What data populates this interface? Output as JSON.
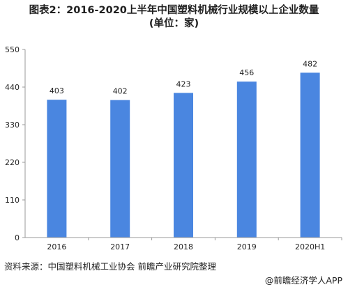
{
  "title_line1": "图表2：2016-2020上半年中国塑料机械行业规模以上企业数量",
  "title_line2": "(单位：家)",
  "source": "资料来源：中国塑料机械工业协会 前瞻产业研究院整理",
  "brand": "@前瞻经济学人APP",
  "colors": {
    "bar": "#4a86e0",
    "axis": "#999999",
    "text": "#222222"
  },
  "chart_data": {
    "type": "bar",
    "title": "图表2：2016-2020上半年中国塑料机械行业规模以上企业数量 (单位：家)",
    "categories": [
      "2016",
      "2017",
      "2018",
      "2019",
      "2020H1"
    ],
    "values": [
      403,
      402,
      423,
      456,
      482
    ],
    "yticks": [
      0,
      110,
      220,
      330,
      440,
      550
    ],
    "ylim": [
      0,
      550
    ],
    "xlabel": "",
    "ylabel": "",
    "grid": false,
    "legend": "none"
  }
}
